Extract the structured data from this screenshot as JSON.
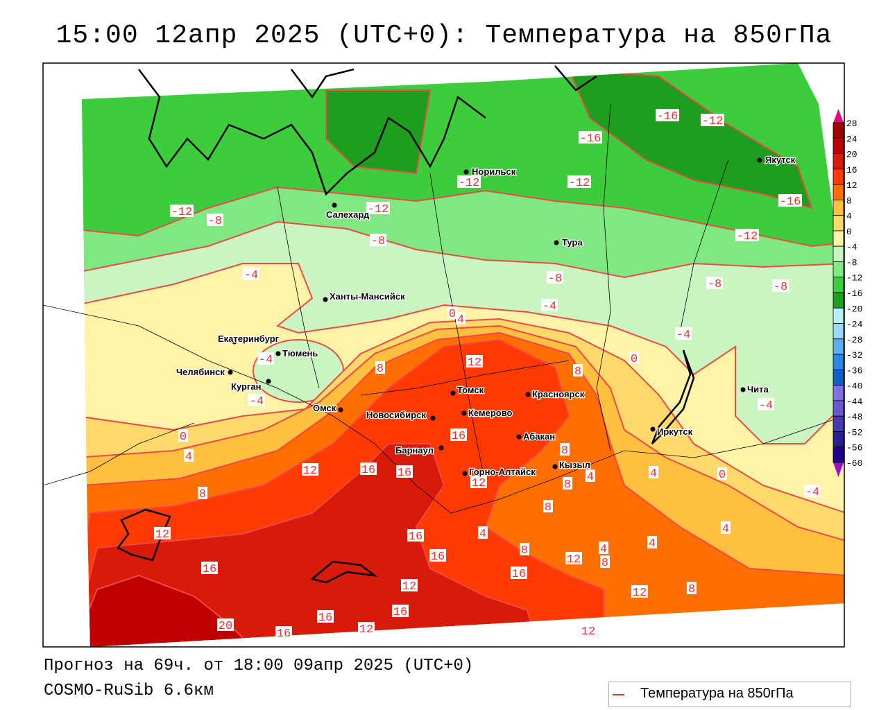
{
  "title": "15:00 12апр 2025 (UTC+0): Температура на 850гПа",
  "footer": {
    "forecast": "Прогноз на 69ч. от 18:00 09апр 2025 (UTC+0)",
    "model": "COSMO-RuSib 6.6км"
  },
  "legend": {
    "label": "Температура на 850гПа",
    "line_color": "#f03030"
  },
  "colorbar": {
    "labels": [
      "28",
      "24",
      "20",
      "16",
      "12",
      "8",
      "4",
      "0",
      "-4",
      "-8",
      "-12",
      "-16",
      "-20",
      "-24",
      "-28",
      "-32",
      "-36",
      "-40",
      "-44",
      "-48",
      "-52",
      "-56",
      "-60"
    ],
    "colors": [
      "#a00000",
      "#c00000",
      "#d81a0a",
      "#ff3a00",
      "#ff6e00",
      "#ffc040",
      "#ffd96b",
      "#fff3a8",
      "#c8f5c0",
      "#80e880",
      "#3ccc3c",
      "#1e9e1e",
      "#b8f0f8",
      "#98d8f8",
      "#58b0f0",
      "#2888e8",
      "#1060c8",
      "#8070e0",
      "#6858d0",
      "#4838b0",
      "#28209a",
      "#200090"
    ],
    "over_color": "#e0107a",
    "under_color": "#a010c0"
  },
  "cities": [
    "Якутск",
    "Норильск",
    "Салехард",
    "Тура",
    "Ханты-Мансийск",
    "Екатеринбург",
    "Тюмень",
    "Челябинск",
    "Курган",
    "Омск",
    "Томск",
    "Красноярск",
    "Новосибирск",
    "Кемерово",
    "Абакан",
    "Барнаул",
    "Горно-Алтайск",
    "Кызыл",
    "Иркутск",
    "Чита"
  ],
  "contour_labels": [
    "-16",
    "-12",
    "-16",
    "-12",
    "-12",
    "-12",
    "-12",
    "-8",
    "-16",
    "-12",
    "-8",
    "-4",
    "-8",
    "-8",
    "-8",
    "-4",
    "0",
    "4",
    "-4",
    "0",
    "12",
    "8",
    "8",
    "-4",
    "-4",
    "0",
    "4",
    "16",
    "8",
    "12",
    "16",
    "16",
    "4",
    "4",
    "0",
    "-4",
    "8",
    "12",
    "8",
    "8",
    "12",
    "16",
    "4",
    "8",
    "16",
    "4",
    "4",
    "4",
    "12",
    "8",
    "16",
    "16",
    "12",
    "12",
    "8",
    "16",
    "16",
    "20",
    "16",
    "12",
    "12",
    "-4"
  ]
}
